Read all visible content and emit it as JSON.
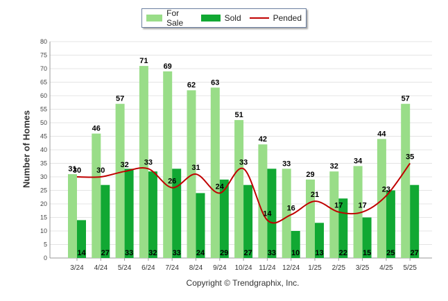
{
  "chart_data": {
    "type": "bar",
    "ylabel": "Number of Homes",
    "xlabel": "",
    "ylim": [
      0,
      80
    ],
    "yticks": [
      0,
      5,
      10,
      15,
      20,
      25,
      30,
      35,
      40,
      45,
      50,
      55,
      60,
      65,
      70,
      75,
      80
    ],
    "categories": [
      "3/24",
      "4/24",
      "5/24",
      "6/24",
      "7/24",
      "8/24",
      "9/24",
      "10/24",
      "11/24",
      "12/24",
      "1/25",
      "2/25",
      "3/25",
      "4/25",
      "5/25"
    ],
    "series": [
      {
        "name": "For Sale",
        "type": "bar",
        "color": "#99dd88",
        "values": [
          31,
          46,
          57,
          71,
          69,
          62,
          63,
          51,
          42,
          33,
          29,
          32,
          34,
          44,
          57
        ]
      },
      {
        "name": "Sold",
        "type": "bar",
        "color": "#11a833",
        "values": [
          14,
          27,
          33,
          32,
          33,
          24,
          29,
          27,
          33,
          10,
          13,
          22,
          15,
          25,
          27
        ]
      },
      {
        "name": "Pended",
        "type": "line",
        "color": "#c00000",
        "values": [
          30,
          30,
          32,
          33,
          26,
          31,
          24,
          33,
          14,
          16,
          21,
          17,
          17,
          23,
          35
        ]
      }
    ],
    "legend_position": "top-center",
    "grid": true
  },
  "footer": {
    "copyright": "Copyright © Trendgraphix, Inc."
  }
}
